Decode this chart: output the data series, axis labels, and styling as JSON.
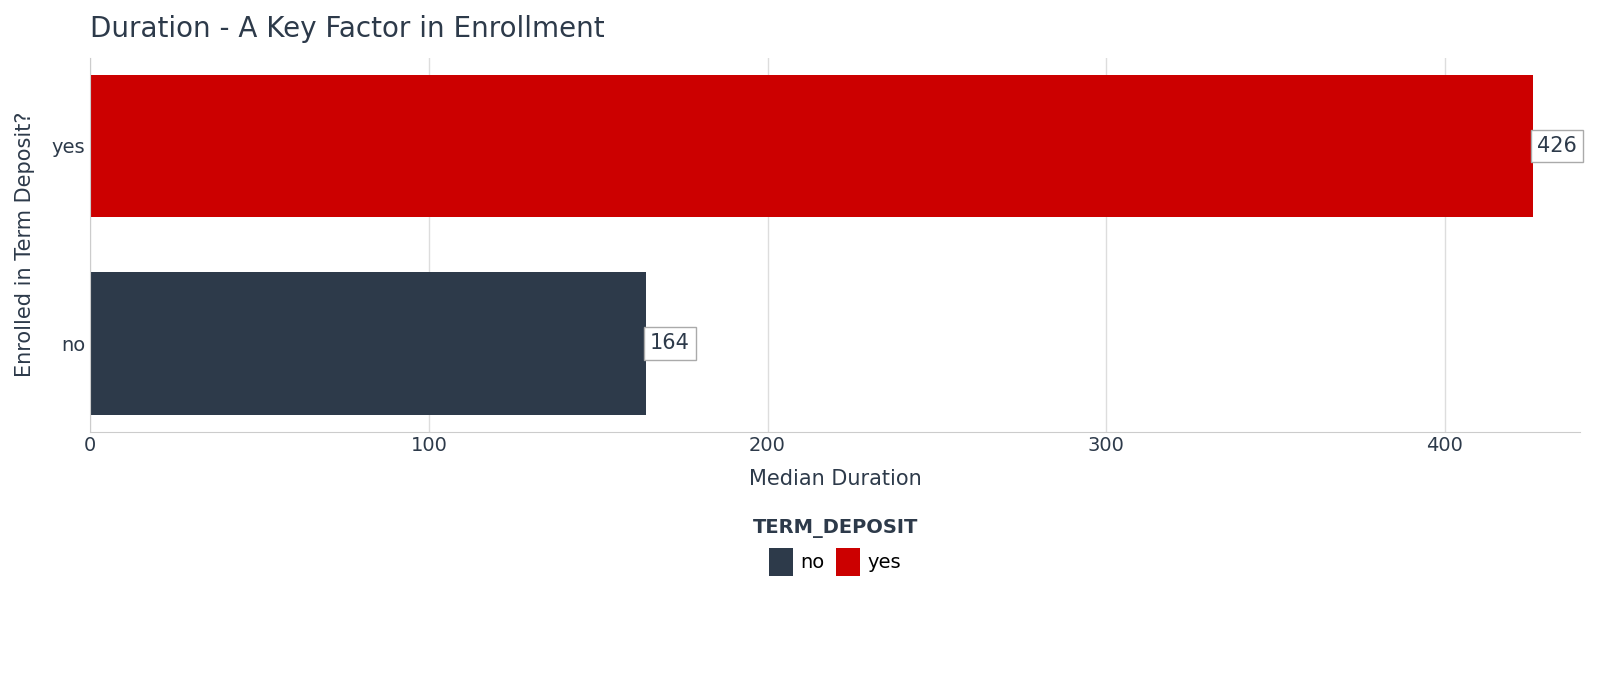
{
  "title": "Duration - A Key Factor in Enrollment",
  "categories": [
    "no",
    "yes"
  ],
  "values": [
    164,
    426
  ],
  "bar_colors": [
    "#2d3a4a",
    "#cc0000"
  ],
  "xlabel": "Median Duration",
  "ylabel": "Enrolled in Term Deposit?",
  "xlim": [
    0,
    440
  ],
  "xticks": [
    0,
    100,
    200,
    300,
    400
  ],
  "legend_labels": [
    "no",
    "yes"
  ],
  "legend_colors": [
    "#2d3a4a",
    "#cc0000"
  ],
  "legend_title": "TERM_DEPOSIT",
  "background_color": "#ffffff",
  "plot_bg_color": "#ffffff",
  "grid_color": "#dddddd",
  "title_fontsize": 20,
  "label_fontsize": 15,
  "tick_fontsize": 14,
  "legend_fontsize": 14
}
